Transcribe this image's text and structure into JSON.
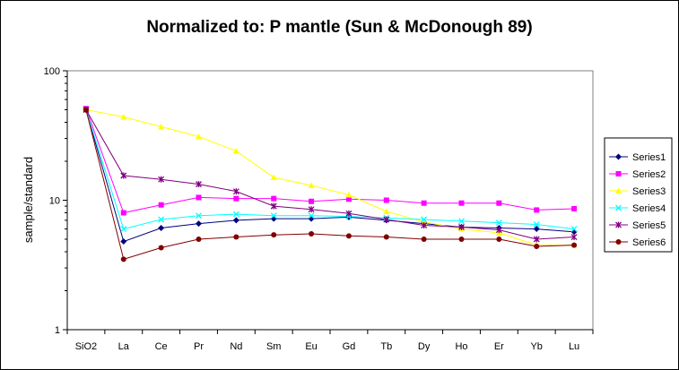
{
  "chart_data": {
    "type": "line",
    "title": "Normalized to: P mantle (Sun & McDonough 89)",
    "ylabel": "sample/standard",
    "xlabel": "",
    "yscale": "log",
    "ylim": [
      1,
      100
    ],
    "yticks": [
      "1",
      "10",
      "100"
    ],
    "categories": [
      "SiO2",
      "La",
      "Ce",
      "Pr",
      "Nd",
      "Sm",
      "Eu",
      "Gd",
      "Tb",
      "Dy",
      "Ho",
      "Er",
      "Yb",
      "Lu"
    ],
    "legend_position": "right",
    "grid": false,
    "series": [
      {
        "name": "Series1",
        "color": "#000080",
        "marker": "diamond",
        "values": [
          50,
          4.8,
          6.1,
          6.6,
          7.0,
          7.2,
          7.2,
          7.4,
          7.0,
          6.6,
          6.2,
          6.1,
          6.0,
          5.7
        ]
      },
      {
        "name": "Series2",
        "color": "#ff00ff",
        "marker": "square",
        "values": [
          51,
          8.0,
          9.2,
          10.5,
          10.3,
          10.3,
          9.8,
          10.2,
          10.0,
          9.5,
          9.5,
          9.5,
          8.4,
          8.6
        ]
      },
      {
        "name": "Series3",
        "color": "#ffff00",
        "marker": "triangle",
        "values": [
          50,
          44,
          37,
          31,
          24,
          15,
          13,
          11,
          8.2,
          6.8,
          6.0,
          5.6,
          4.5,
          4.5
        ]
      },
      {
        "name": "Series4",
        "color": "#00ffff",
        "marker": "x",
        "values": [
          50,
          6.0,
          7.1,
          7.6,
          7.8,
          7.6,
          7.6,
          7.5,
          7.3,
          7.1,
          6.9,
          6.7,
          6.5,
          6.0
        ]
      },
      {
        "name": "Series5",
        "color": "#800080",
        "marker": "star",
        "values": [
          50,
          15.5,
          14.5,
          13.3,
          11.7,
          9.0,
          8.5,
          7.9,
          7.1,
          6.4,
          6.2,
          5.9,
          5.0,
          5.2
        ]
      },
      {
        "name": "Series6",
        "color": "#800000",
        "marker": "circle",
        "values": [
          50,
          3.5,
          4.3,
          5.0,
          5.2,
          5.4,
          5.5,
          5.3,
          5.2,
          5.0,
          5.0,
          5.0,
          4.4,
          4.5
        ]
      }
    ]
  }
}
